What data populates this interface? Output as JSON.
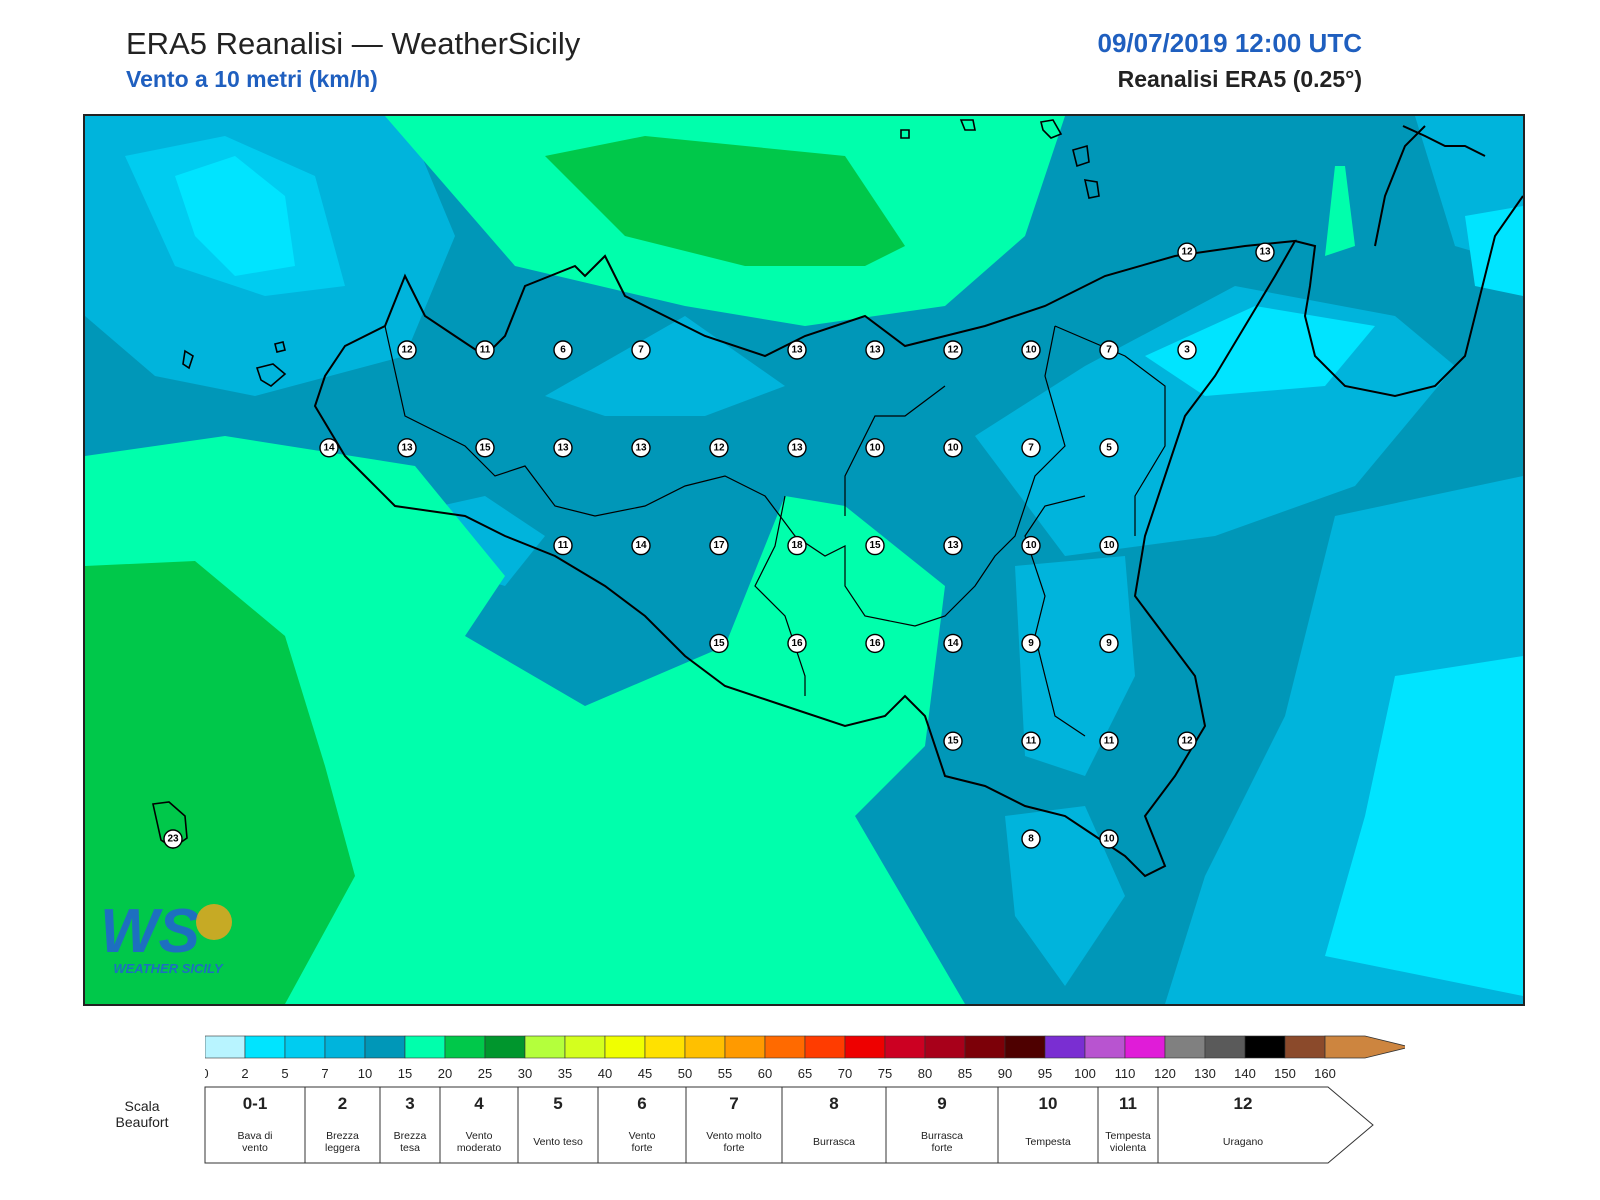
{
  "header": {
    "title": "ERA5 Reanalisi — WeatherSicily",
    "subtitle": "Vento a 10 metri (km/h)",
    "datetime": "09/07/2019 12:00 UTC",
    "dataset": "Reanalisi ERA5 (0.25°)"
  },
  "colors": {
    "sea_deep": "#0097b8",
    "sea_light": "#00b4dc",
    "cyan": "#00e4ff",
    "aqua": "#00ffac",
    "green": "#00c84a",
    "darkgreen": "#00962d",
    "coast": "#000000",
    "accent_blue": "#1f5fbf"
  },
  "stations": [
    {
      "v": "12",
      "lon": 12.8,
      "lat": 38.0
    },
    {
      "v": "11",
      "lon": 13.3,
      "lat": 38.0
    },
    {
      "v": "6",
      "lon": 13.8,
      "lat": 38.0
    },
    {
      "v": "7",
      "lon": 14.3,
      "lat": 38.0
    },
    {
      "v": "13",
      "lon": 15.3,
      "lat": 38.0
    },
    {
      "v": "13",
      "lon": 15.8,
      "lat": 38.0
    },
    {
      "v": "12",
      "lon": 16.3,
      "lat": 38.0
    },
    {
      "v": "10",
      "lon": 16.8,
      "lat": 38.0
    },
    {
      "v": "7",
      "lon": 17.3,
      "lat": 38.0
    },
    {
      "v": "3",
      "lon": 17.8,
      "lat": 38.0
    },
    {
      "v": "12",
      "lon": 17.8,
      "lat": 38.6
    },
    {
      "v": "13",
      "lon": 18.3,
      "lat": 38.6
    },
    {
      "v": "14",
      "lon": 12.3,
      "lat": 37.4
    },
    {
      "v": "13",
      "lon": 12.8,
      "lat": 37.4
    },
    {
      "v": "15",
      "lon": 13.3,
      "lat": 37.4
    },
    {
      "v": "13",
      "lon": 13.8,
      "lat": 37.4
    },
    {
      "v": "13",
      "lon": 14.3,
      "lat": 37.4
    },
    {
      "v": "12",
      "lon": 14.8,
      "lat": 37.4
    },
    {
      "v": "13",
      "lon": 15.3,
      "lat": 37.4
    },
    {
      "v": "10",
      "lon": 15.8,
      "lat": 37.4
    },
    {
      "v": "10",
      "lon": 16.3,
      "lat": 37.4
    },
    {
      "v": "7",
      "lon": 16.8,
      "lat": 37.4
    },
    {
      "v": "5",
      "lon": 17.3,
      "lat": 37.4
    },
    {
      "v": "11",
      "lon": 13.8,
      "lat": 36.8
    },
    {
      "v": "14",
      "lon": 14.3,
      "lat": 36.8
    },
    {
      "v": "17",
      "lon": 14.8,
      "lat": 36.8
    },
    {
      "v": "18",
      "lon": 15.3,
      "lat": 36.8
    },
    {
      "v": "15",
      "lon": 15.8,
      "lat": 36.8
    },
    {
      "v": "13",
      "lon": 16.3,
      "lat": 36.8
    },
    {
      "v": "10",
      "lon": 16.8,
      "lat": 36.8
    },
    {
      "v": "10",
      "lon": 17.3,
      "lat": 36.8
    },
    {
      "v": "15",
      "lon": 14.8,
      "lat": 36.2
    },
    {
      "v": "16",
      "lon": 15.3,
      "lat": 36.2
    },
    {
      "v": "16",
      "lon": 15.8,
      "lat": 36.2
    },
    {
      "v": "14",
      "lon": 16.3,
      "lat": 36.2
    },
    {
      "v": "9",
      "lon": 16.8,
      "lat": 36.2
    },
    {
      "v": "9",
      "lon": 17.3,
      "lat": 36.2
    },
    {
      "v": "15",
      "lon": 16.3,
      "lat": 35.6
    },
    {
      "v": "11",
      "lon": 16.8,
      "lat": 35.6
    },
    {
      "v": "11",
      "lon": 17.3,
      "lat": 35.6
    },
    {
      "v": "12",
      "lon": 17.8,
      "lat": 35.6
    },
    {
      "v": "8",
      "lon": 16.8,
      "lat": 35.0
    },
    {
      "v": "10",
      "lon": 17.3,
      "lat": 35.0
    },
    {
      "v": "23",
      "lon": 11.3,
      "lat": 35.0
    }
  ],
  "colorbar": {
    "ticks": [
      "0",
      "2",
      "5",
      "7",
      "10",
      "15",
      "20",
      "25",
      "30",
      "35",
      "40",
      "45",
      "50",
      "55",
      "60",
      "65",
      "70",
      "75",
      "80",
      "85",
      "90",
      "95",
      "100",
      "110",
      "120",
      "130",
      "140",
      "150",
      "160"
    ],
    "colors": [
      "#b8f4ff",
      "#00e4ff",
      "#00ccf0",
      "#00b4dc",
      "#0097b8",
      "#00ffac",
      "#00c84a",
      "#00962d",
      "#b4ff3c",
      "#d4ff1e",
      "#f0ff00",
      "#ffe100",
      "#ffc000",
      "#ff9a00",
      "#ff6a00",
      "#ff3c00",
      "#ee0000",
      "#cc0022",
      "#a8001a",
      "#7c0008",
      "#4e0000",
      "#7a2ed2",
      "#b854d0",
      "#e01cd8",
      "#808080",
      "#5a5a5a",
      "#000000",
      "#8b4a2b",
      "#cd853f"
    ]
  },
  "beaufort": {
    "label_line1": "Scala",
    "label_line2": "Beaufort",
    "items": [
      {
        "num": "0-1",
        "d1": "Bava di",
        "d2": "vento"
      },
      {
        "num": "2",
        "d1": "Brezza",
        "d2": "leggera"
      },
      {
        "num": "3",
        "d1": "Brezza",
        "d2": "tesa"
      },
      {
        "num": "4",
        "d1": "Vento",
        "d2": "moderato"
      },
      {
        "num": "5",
        "d1": "Vento teso",
        "d2": ""
      },
      {
        "num": "6",
        "d1": "Vento",
        "d2": "forte"
      },
      {
        "num": "7",
        "d1": "Vento molto",
        "d2": "forte"
      },
      {
        "num": "8",
        "d1": "Burrasca",
        "d2": ""
      },
      {
        "num": "9",
        "d1": "Burrasca",
        "d2": "forte"
      },
      {
        "num": "10",
        "d1": "Tempesta",
        "d2": ""
      },
      {
        "num": "11",
        "d1": "Tempesta",
        "d2": "violenta"
      },
      {
        "num": "12",
        "d1": "Uragano",
        "d2": ""
      }
    ]
  },
  "logo": {
    "text": "WEATHER SICILY",
    "mark": "WS"
  }
}
